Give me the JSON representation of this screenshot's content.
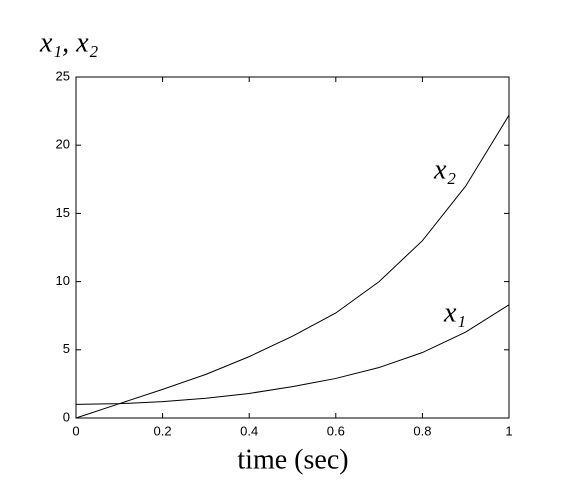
{
  "chart_data": {
    "type": "line",
    "x_label": "time (sec)",
    "y_label": "x₁, x₂",
    "x": [
      0,
      0.1,
      0.2,
      0.3,
      0.4,
      0.5,
      0.6,
      0.7,
      0.8,
      0.9,
      1.0
    ],
    "series": [
      {
        "name": "x₁",
        "color": "#000000",
        "values": [
          1,
          1.05,
          1.2,
          1.45,
          1.8,
          2.3,
          2.9,
          3.7,
          4.8,
          6.3,
          8.3
        ]
      },
      {
        "name": "x₂",
        "color": "#000000",
        "values": [
          0,
          1.05,
          2.1,
          3.2,
          4.5,
          6.0,
          7.7,
          10.0,
          13.0,
          17.0,
          22.2
        ]
      }
    ],
    "xlim": [
      0,
      1
    ],
    "ylim": [
      0,
      25
    ],
    "xticks": [
      0,
      0.2,
      0.4,
      0.6,
      0.8,
      1
    ],
    "yticks": [
      0,
      5,
      10,
      15,
      20,
      25
    ]
  }
}
